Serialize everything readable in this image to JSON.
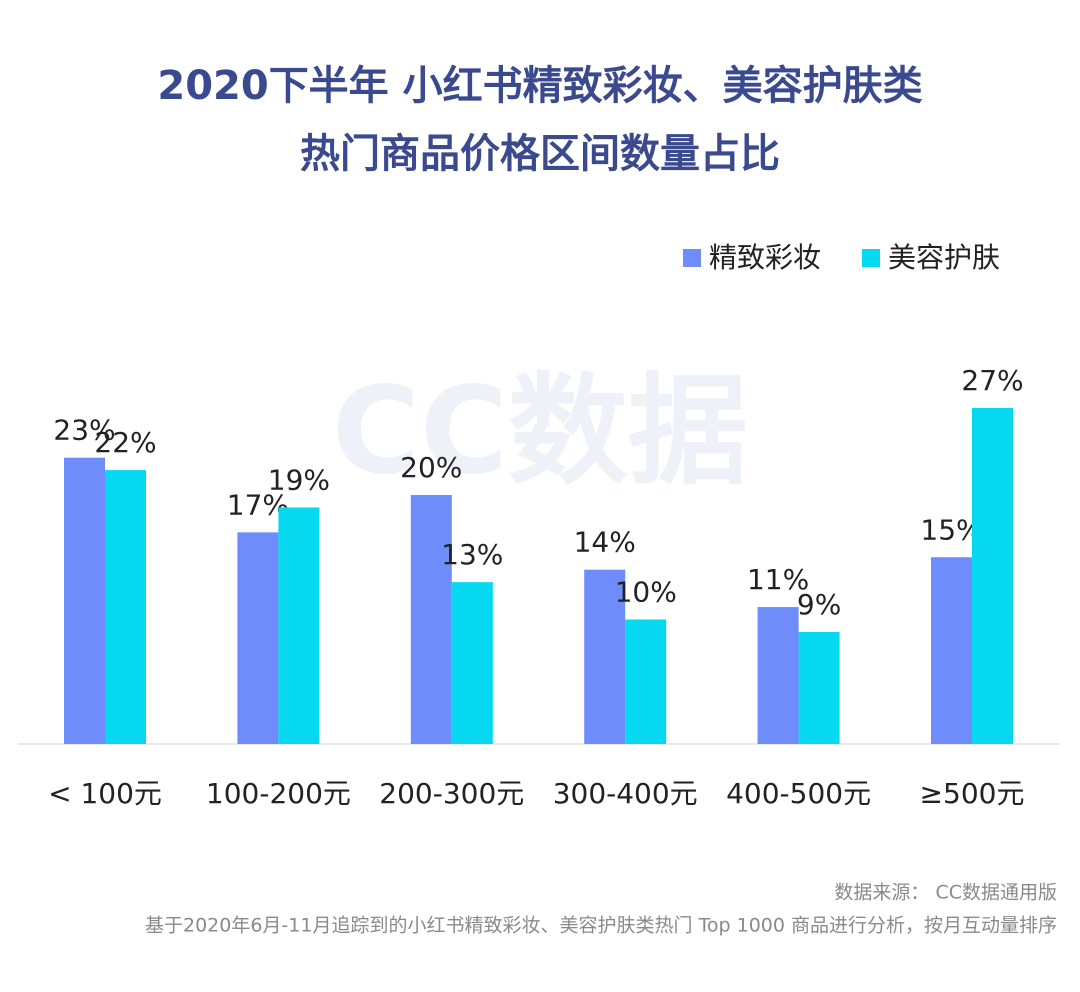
{
  "chart_data": {
    "type": "bar",
    "title": [
      "2020下半年 小红书精致彩妆、美容护肤类",
      "热门商品价格区间数量占比"
    ],
    "watermark": "CC数据",
    "categories": [
      "< 100元",
      "100-200元",
      "200-300元",
      "300-400元",
      "400-500元",
      "≥500元"
    ],
    "series": [
      {
        "name": "精致彩妆",
        "color": "#6f8dfa",
        "values": [
          23,
          17,
          20,
          14,
          11,
          15
        ],
        "value_labels": [
          "23%",
          "17%",
          "20%",
          "14%",
          "11%",
          "15%"
        ]
      },
      {
        "name": "美容护肤",
        "color": "#06d9ef",
        "values": [
          22,
          19,
          13,
          10,
          9,
          27
        ],
        "value_labels": [
          "22%",
          "19%",
          "13%",
          "10%",
          "9%",
          "27%"
        ]
      }
    ],
    "legend": "top-right",
    "source": "数据来源： CC数据通用版",
    "note": "基于2020年6月-11月追踪到的小红书精致彩妆、美容护肤类热门 Top 1000 商品进行分析，按月互动量排序"
  }
}
